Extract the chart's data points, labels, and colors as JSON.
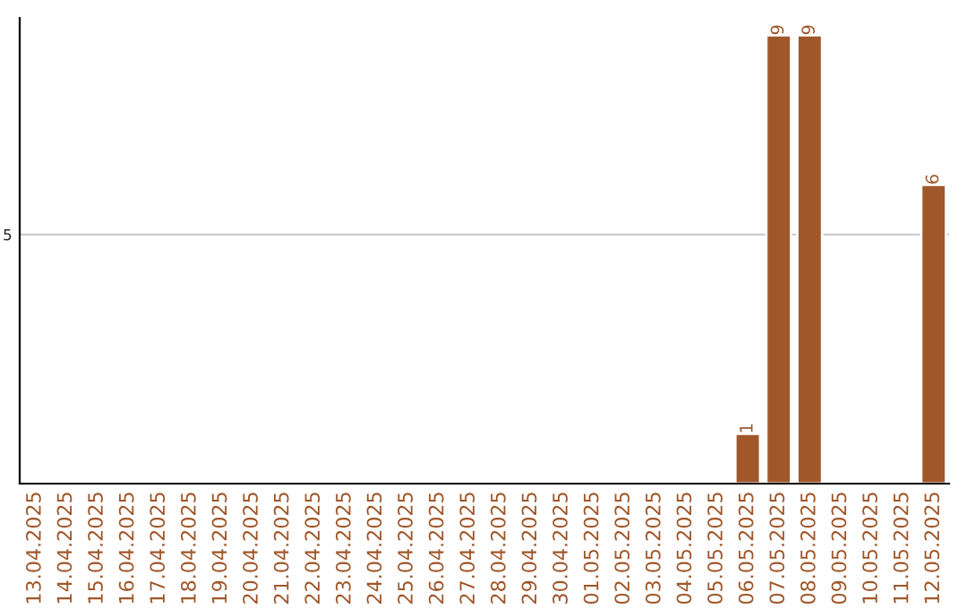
{
  "chart_data": {
    "type": "bar",
    "categories": [
      "13.04.2025",
      "14.04.2025",
      "15.04.2025",
      "16.04.2025",
      "17.04.2025",
      "18.04.2025",
      "19.04.2025",
      "20.04.2025",
      "21.04.2025",
      "22.04.2025",
      "23.04.2025",
      "24.04.2025",
      "25.04.2025",
      "26.04.2025",
      "27.04.2025",
      "28.04.2025",
      "29.04.2025",
      "30.04.2025",
      "01.05.2025",
      "02.05.2025",
      "03.05.2025",
      "04.05.2025",
      "05.05.2025",
      "06.05.2025",
      "07.05.2025",
      "08.05.2025",
      "09.05.2025",
      "10.05.2025",
      "11.05.2025",
      "12.05.2025"
    ],
    "values": [
      null,
      null,
      null,
      null,
      null,
      null,
      null,
      null,
      null,
      null,
      null,
      null,
      null,
      null,
      null,
      null,
      null,
      null,
      null,
      null,
      null,
      null,
      null,
      1,
      9,
      9,
      null,
      null,
      null,
      6
    ],
    "color": "#a0572a",
    "ylim": [
      0,
      9.35
    ],
    "yticks": [
      5
    ],
    "grid": "y",
    "data_labels": true
  }
}
